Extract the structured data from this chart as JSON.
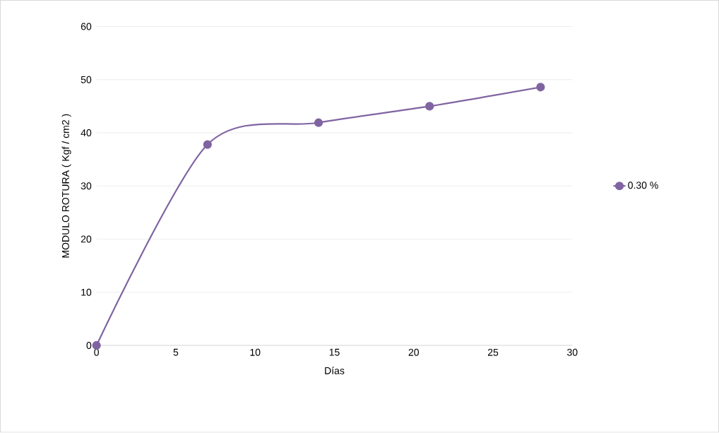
{
  "chart_data": {
    "type": "line",
    "xlabel": "Días",
    "ylabel": "MODULO ROTURA  ( Kgf / cm2 )",
    "x": [
      0,
      7,
      14,
      21,
      28
    ],
    "series": [
      {
        "name": "0.30 %",
        "color": "#8064a2",
        "values": [
          0,
          37.8,
          41.9,
          45.0,
          48.6
        ]
      }
    ],
    "xlim": [
      0,
      30
    ],
    "xticks": [
      0,
      5,
      10,
      15,
      20,
      25,
      30
    ],
    "ylim": [
      0,
      60
    ],
    "yticks": [
      0,
      10,
      20,
      30,
      40,
      50,
      60
    ],
    "grid": "y",
    "legend": "right",
    "marker": "circle",
    "line_style": "solid"
  }
}
